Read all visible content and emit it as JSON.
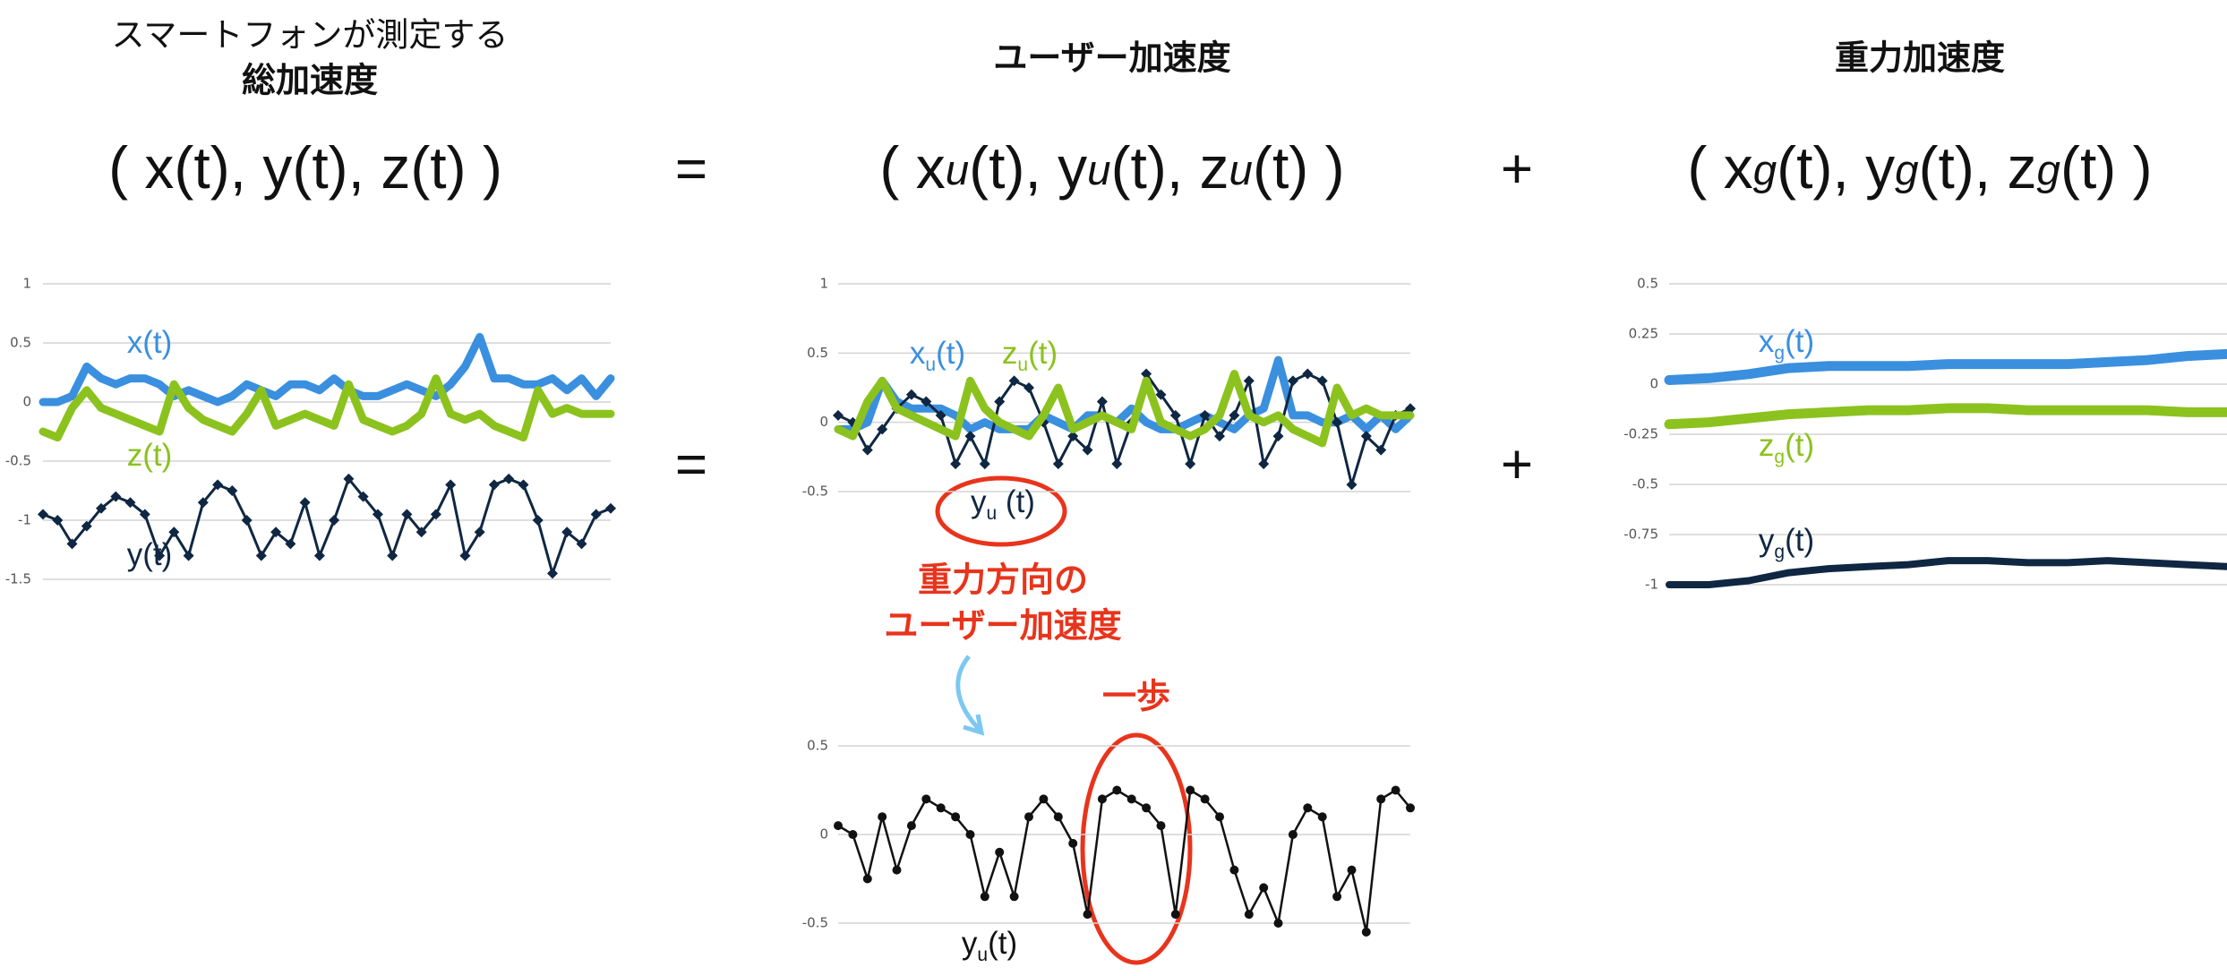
{
  "header": {
    "total_title": [
      "スマートフォンが測定する",
      "総加速度"
    ],
    "user_title": "ユーザー加速度",
    "gravity_title": "重力加速度",
    "formula_total": [
      "( x(t), y(t), z(t) )"
    ],
    "formula_user": [
      "( x",
      "u",
      "(t), y",
      "u",
      "(t), z",
      "u",
      "(t) )"
    ],
    "formula_gravity": [
      "( x",
      "g",
      "(t), y",
      "g",
      "(t), z",
      "g",
      "(t) )"
    ],
    "equals": "=",
    "plus": "+"
  },
  "annotations": {
    "vertical": [
      "重力方向の",
      "ユーザー加速度"
    ],
    "step": "一歩"
  },
  "chart_data": [
    {
      "type": "line",
      "ylim": [
        -1.5,
        1
      ],
      "yticks": [
        1,
        0.5,
        0,
        -0.5,
        -1,
        -1.5
      ],
      "grid": true,
      "series": [
        {
          "name": [
            "x(t)"
          ],
          "color": "#3a8fde",
          "values": [
            0,
            0,
            0.05,
            0.3,
            0.2,
            0.15,
            0.2,
            0.2,
            0.15,
            0.05,
            0.1,
            0.05,
            0,
            0.05,
            0.15,
            0.1,
            0.05,
            0.15,
            0.15,
            0.1,
            0.2,
            0.1,
            0.05,
            0.05,
            0.1,
            0.15,
            0.1,
            0.05,
            0.15,
            0.3,
            0.55,
            0.2,
            0.2,
            0.15,
            0.15,
            0.2,
            0.1,
            0.2,
            0.05,
            0.2
          ]
        },
        {
          "name": [
            "z(t)"
          ],
          "color": "#8cc21e",
          "values": [
            -0.25,
            -0.3,
            -0.05,
            0.1,
            -0.05,
            -0.1,
            -0.15,
            -0.2,
            -0.25,
            0.15,
            -0.05,
            -0.15,
            -0.2,
            -0.25,
            -0.1,
            0.1,
            -0.2,
            -0.15,
            -0.1,
            -0.15,
            -0.2,
            0.15,
            -0.15,
            -0.2,
            -0.25,
            -0.2,
            -0.1,
            0.2,
            -0.1,
            -0.15,
            -0.1,
            -0.2,
            -0.25,
            -0.3,
            0.1,
            -0.1,
            -0.05,
            -0.1,
            -0.1,
            -0.1
          ]
        },
        {
          "name": [
            "y(t)"
          ],
          "color": "#0f2742",
          "values": [
            -0.95,
            -1,
            -1.2,
            -1.05,
            -0.9,
            -0.8,
            -0.85,
            -0.95,
            -1.3,
            -1.1,
            -1.3,
            -0.85,
            -0.7,
            -0.75,
            -1,
            -1.3,
            -1.1,
            -1.2,
            -0.85,
            -1.3,
            -1,
            -0.65,
            -0.8,
            -0.95,
            -1.3,
            -0.95,
            -1.1,
            -0.95,
            -0.7,
            -1.3,
            -1.1,
            -0.7,
            -0.65,
            -0.7,
            -1,
            -1.45,
            -1.1,
            -1.2,
            -0.95,
            -0.9
          ]
        }
      ]
    },
    {
      "type": "line",
      "ylim": [
        -0.5,
        1
      ],
      "yticks": [
        1,
        0.5,
        0,
        -0.5
      ],
      "grid": true,
      "series": [
        {
          "name": [
            "x",
            "u",
            "(t)"
          ],
          "color": "#3a8fde",
          "values": [
            -0.05,
            -0.05,
            0,
            0.3,
            0.15,
            0.1,
            0.1,
            0.1,
            0.05,
            -0.05,
            0,
            -0.05,
            -0.05,
            -0.05,
            0.05,
            0,
            -0.05,
            0.05,
            0.05,
            0,
            0.1,
            0,
            -0.05,
            -0.05,
            0,
            0.05,
            0,
            -0.05,
            0.05,
            0.1,
            0.45,
            0.05,
            0.05,
            0,
            0,
            0.05,
            -0.05,
            0.05,
            -0.05,
            0.05
          ]
        },
        {
          "name": [
            "y",
            "u",
            " (t)"
          ],
          "color": "#0f2742",
          "values": [
            0.05,
            0,
            -0.2,
            -0.05,
            0.1,
            0.2,
            0.15,
            0.05,
            -0.3,
            -0.1,
            -0.3,
            0.15,
            0.3,
            0.25,
            0,
            -0.3,
            -0.1,
            -0.2,
            0.15,
            -0.3,
            0,
            0.35,
            0.2,
            0.05,
            -0.3,
            0.05,
            -0.1,
            0.05,
            0.3,
            -0.3,
            -0.1,
            0.3,
            0.35,
            0.3,
            0,
            -0.45,
            -0.1,
            -0.2,
            0.05,
            0.1
          ]
        },
        {
          "name": [
            "z",
            "u",
            "(t)"
          ],
          "color": "#8cc21e",
          "values": [
            -0.05,
            -0.1,
            0.15,
            0.3,
            0.1,
            0.05,
            0,
            -0.05,
            -0.1,
            0.3,
            0.1,
            0,
            -0.05,
            -0.1,
            0.05,
            0.25,
            -0.05,
            0,
            0.05,
            0,
            -0.05,
            0.3,
            0,
            -0.05,
            -0.1,
            -0.05,
            0.05,
            0.35,
            0.05,
            0,
            0.05,
            -0.05,
            -0.1,
            -0.15,
            0.25,
            0.05,
            0.1,
            0.05,
            0.05,
            0.05
          ]
        }
      ]
    },
    {
      "type": "line",
      "ylim": [
        -1,
        0.5
      ],
      "yticks": [
        0.5,
        0.25,
        0,
        -0.25,
        -0.5,
        -0.75,
        -1
      ],
      "grid": true,
      "series": [
        {
          "name": [
            "x",
            "g",
            "(t)"
          ],
          "color": "#3a8fde",
          "values": [
            0.02,
            0.03,
            0.05,
            0.08,
            0.09,
            0.09,
            0.09,
            0.1,
            0.1,
            0.1,
            0.1,
            0.11,
            0.12,
            0.14,
            0.15
          ]
        },
        {
          "name": [
            "z",
            "g",
            "(t)"
          ],
          "color": "#8cc21e",
          "values": [
            -0.2,
            -0.19,
            -0.17,
            -0.15,
            -0.14,
            -0.13,
            -0.13,
            -0.12,
            -0.12,
            -0.13,
            -0.13,
            -0.13,
            -0.13,
            -0.14,
            -0.14
          ]
        },
        {
          "name": [
            "y",
            "g",
            "(t)"
          ],
          "color": "#0f2742",
          "values": [
            -1,
            -1,
            -0.98,
            -0.94,
            -0.92,
            -0.91,
            -0.9,
            -0.88,
            -0.88,
            -0.89,
            -0.89,
            -0.88,
            -0.89,
            -0.9,
            -0.91
          ]
        }
      ]
    },
    {
      "type": "line",
      "ylim": [
        -0.5,
        0.5
      ],
      "yticks": [
        0.5,
        0,
        -0.5
      ],
      "grid": true,
      "series": [
        {
          "name": [
            "y",
            "u",
            "(t)"
          ],
          "color": "#111111",
          "values": [
            0.05,
            0,
            -0.25,
            0.1,
            -0.2,
            0.05,
            0.2,
            0.15,
            0.1,
            0,
            -0.35,
            -0.1,
            -0.35,
            0.1,
            0.2,
            0.1,
            -0.05,
            -0.45,
            0.2,
            0.25,
            0.2,
            0.15,
            0.05,
            -0.45,
            0.25,
            0.2,
            0.1,
            -0.2,
            -0.45,
            -0.3,
            -0.5,
            0,
            0.15,
            0.1,
            -0.35,
            -0.2,
            -0.55,
            0.2,
            0.25,
            0.15
          ]
        }
      ]
    }
  ]
}
